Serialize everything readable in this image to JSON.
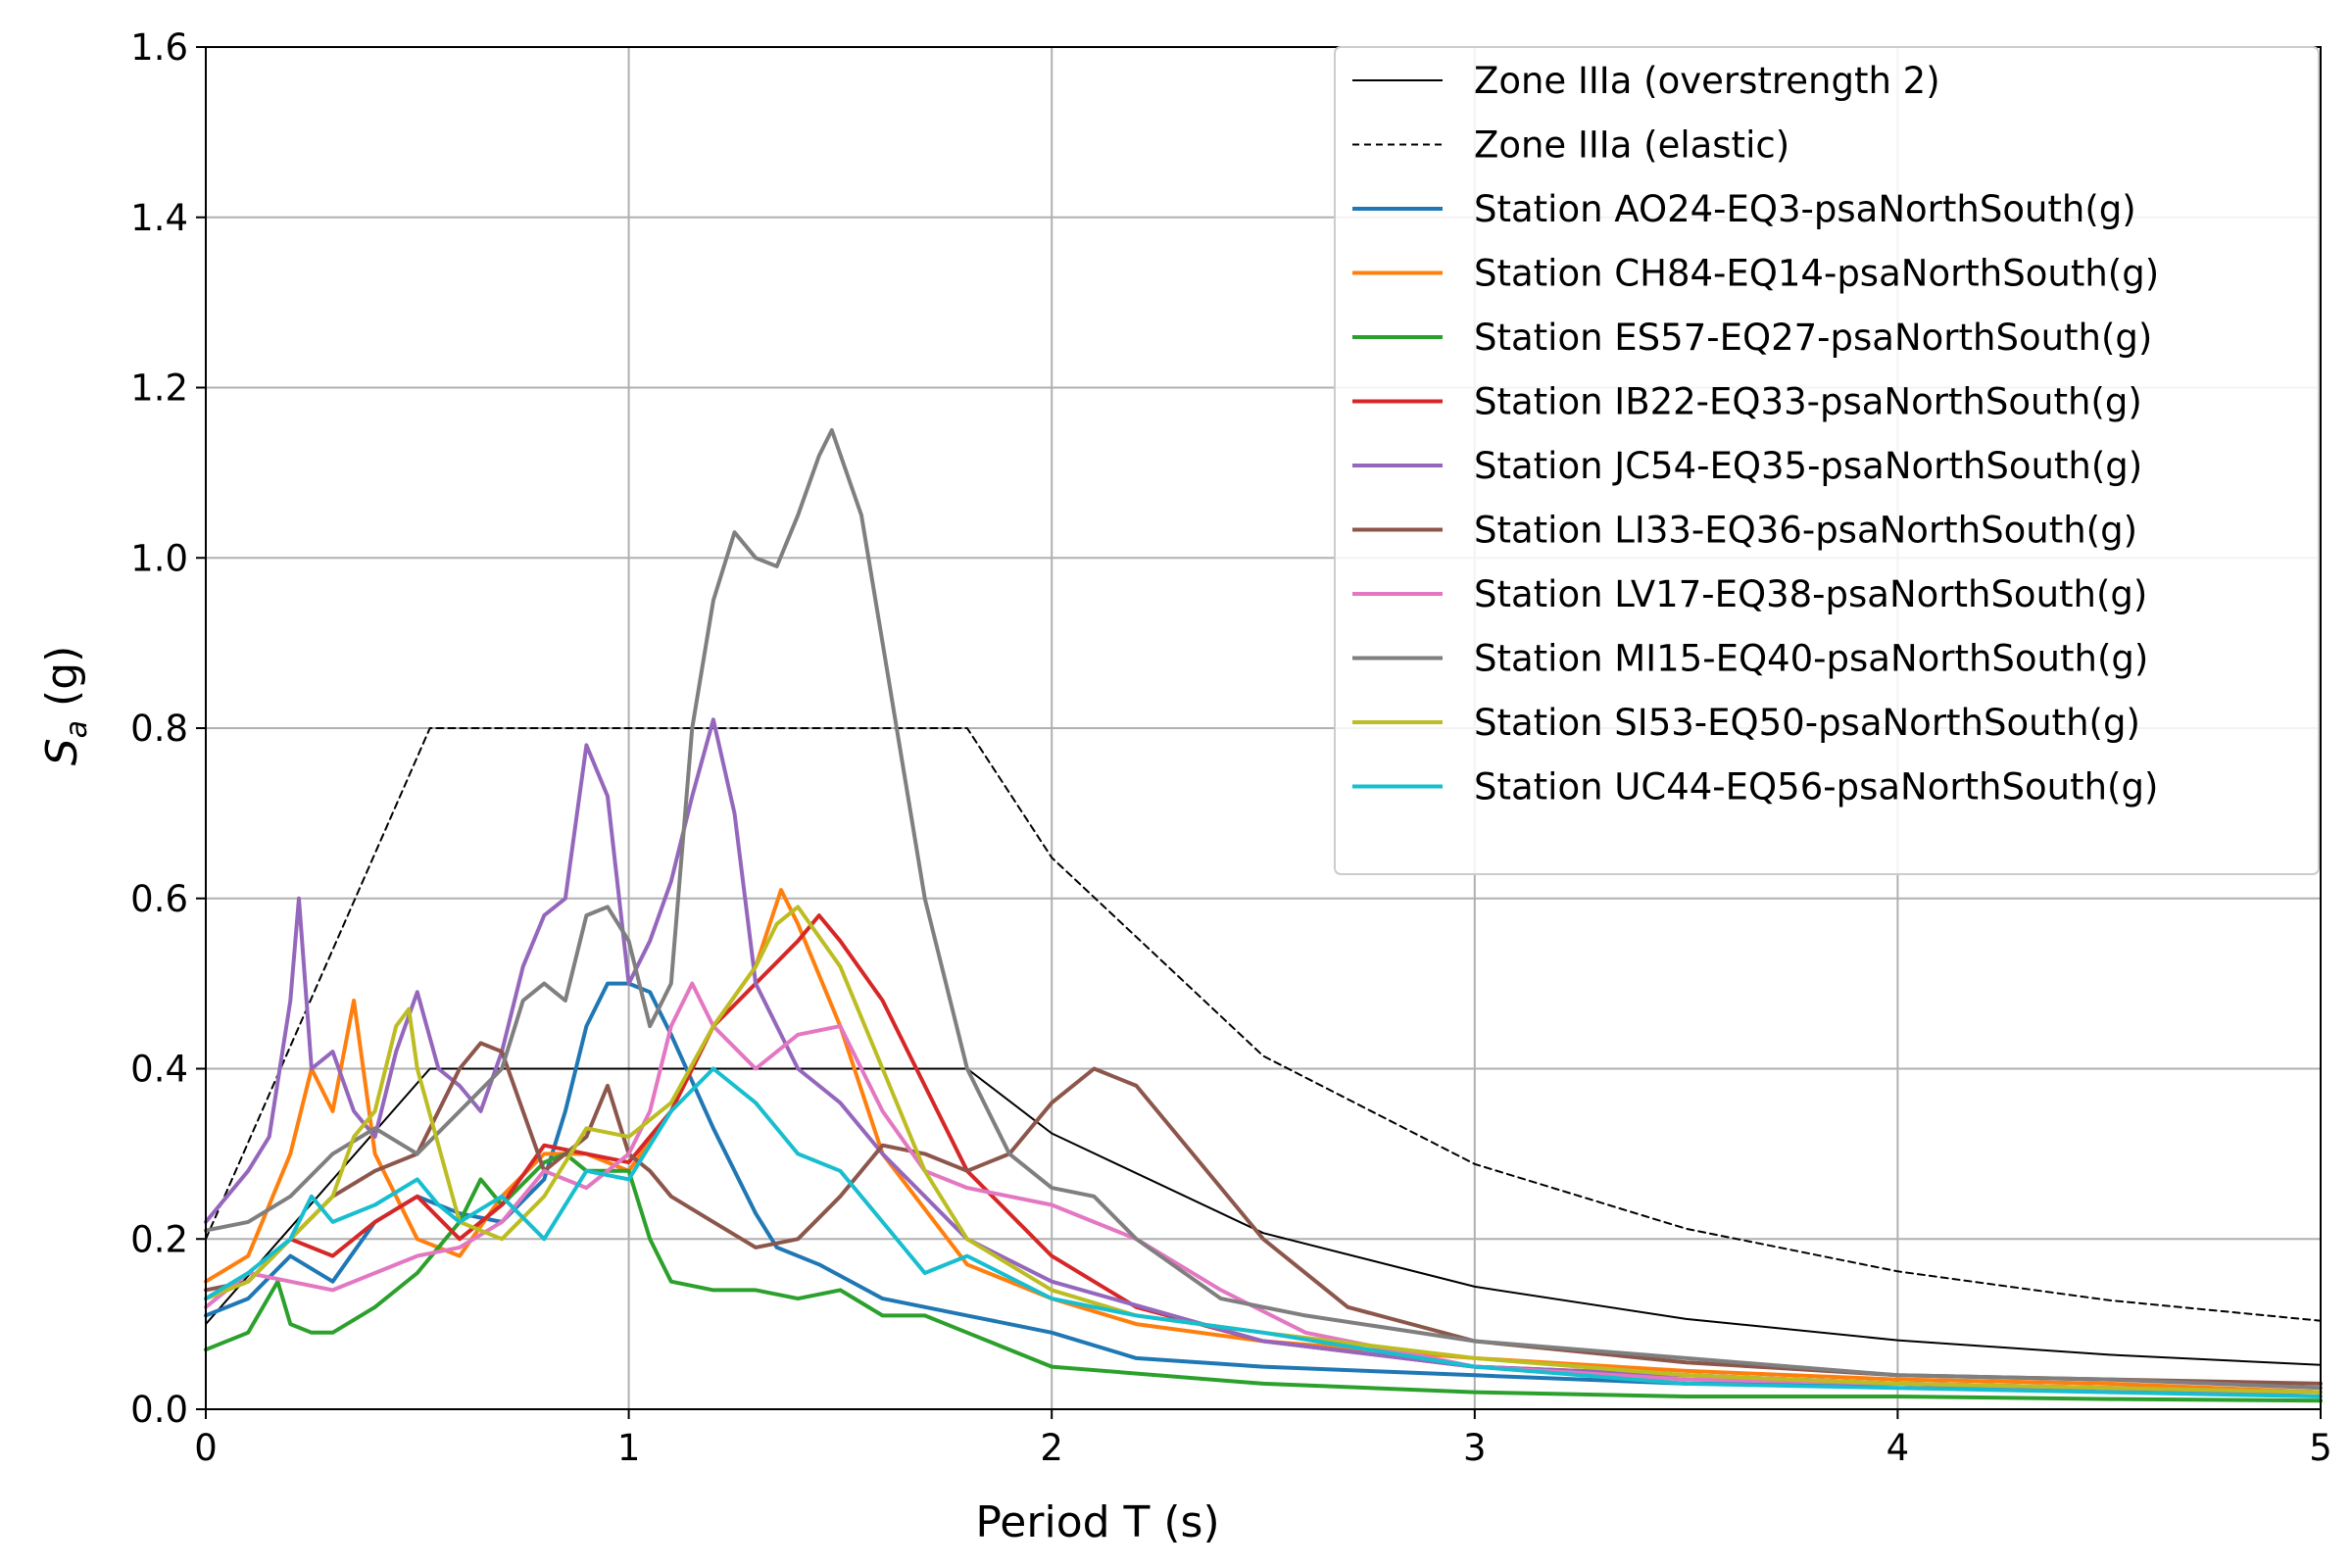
{
  "chart_data": {
    "type": "line",
    "xlabel": "Period T (s)",
    "ylabel_main": "S",
    "ylabel_sub": "a",
    "ylabel_unit": " (g)",
    "xlim": [
      0,
      5
    ],
    "ylim": [
      0,
      1.6
    ],
    "xticks": [
      0,
      1,
      2,
      3,
      4,
      5
    ],
    "xtick_labels": [
      "0",
      "1",
      "2",
      "3",
      "4",
      "5"
    ],
    "yticks": [
      0,
      0.2,
      0.4,
      0.6,
      0.8,
      1.0,
      1.2,
      1.4,
      1.6
    ],
    "ytick_labels": [
      "0.0",
      "0.2",
      "0.4",
      "0.6",
      "0.8",
      "1.0",
      "1.2",
      "1.4",
      "1.6"
    ],
    "grid": true,
    "legend_position": "top-right",
    "series": [
      {
        "name": "Zone IIIa (overstrength 2)",
        "color": "#000000",
        "dash": "solid",
        "width": 2,
        "x": [
          0,
          0.53,
          1.8,
          2.0,
          2.5,
          3.0,
          3.5,
          4.0,
          4.5,
          5.0
        ],
        "y": [
          0.1,
          0.4,
          0.4,
          0.324,
          0.207,
          0.144,
          0.106,
          0.081,
          0.064,
          0.052
        ]
      },
      {
        "name": "Zone IIIa (elastic)",
        "color": "#000000",
        "dash": "dashed",
        "width": 2,
        "x": [
          0,
          0.53,
          1.8,
          2.0,
          2.5,
          3.0,
          3.5,
          4.0,
          4.5,
          5.0
        ],
        "y": [
          0.2,
          0.8,
          0.8,
          0.648,
          0.415,
          0.288,
          0.212,
          0.162,
          0.128,
          0.104
        ]
      },
      {
        "name": "Station AO24-EQ3-psaNorthSouth(g)",
        "color": "#1f77b4",
        "dash": "solid",
        "width": 4,
        "x": [
          0,
          0.1,
          0.2,
          0.3,
          0.4,
          0.5,
          0.6,
          0.7,
          0.8,
          0.85,
          0.9,
          0.95,
          1.0,
          1.05,
          1.1,
          1.2,
          1.3,
          1.35,
          1.45,
          1.6,
          1.8,
          2.0,
          2.2,
          2.5,
          3.0,
          3.5,
          4.0,
          4.5,
          5.0
        ],
        "y": [
          0.11,
          0.13,
          0.18,
          0.15,
          0.22,
          0.25,
          0.23,
          0.22,
          0.27,
          0.35,
          0.45,
          0.5,
          0.5,
          0.49,
          0.44,
          0.33,
          0.23,
          0.19,
          0.17,
          0.13,
          0.11,
          0.09,
          0.06,
          0.05,
          0.04,
          0.03,
          0.03,
          0.025,
          0.02
        ]
      },
      {
        "name": "Station CH84-EQ14-psaNorthSouth(g)",
        "color": "#ff7f0e",
        "dash": "solid",
        "width": 4,
        "x": [
          0,
          0.1,
          0.2,
          0.25,
          0.3,
          0.35,
          0.4,
          0.45,
          0.5,
          0.6,
          0.7,
          0.8,
          0.9,
          1.0,
          1.1,
          1.2,
          1.3,
          1.36,
          1.4,
          1.5,
          1.6,
          1.8,
          2.0,
          2.2,
          2.5,
          3.0,
          3.5,
          4.0,
          4.5,
          5.0
        ],
        "y": [
          0.15,
          0.18,
          0.3,
          0.4,
          0.35,
          0.48,
          0.3,
          0.25,
          0.2,
          0.18,
          0.25,
          0.3,
          0.3,
          0.28,
          0.35,
          0.45,
          0.52,
          0.61,
          0.57,
          0.45,
          0.3,
          0.17,
          0.13,
          0.1,
          0.08,
          0.06,
          0.045,
          0.035,
          0.03,
          0.02
        ]
      },
      {
        "name": "Station ES57-EQ27-psaNorthSouth(g)",
        "color": "#2ca02c",
        "dash": "solid",
        "width": 4,
        "x": [
          0,
          0.1,
          0.17,
          0.2,
          0.25,
          0.3,
          0.4,
          0.5,
          0.6,
          0.65,
          0.7,
          0.8,
          0.85,
          0.9,
          1.0,
          1.05,
          1.1,
          1.2,
          1.3,
          1.4,
          1.5,
          1.6,
          1.7,
          1.8,
          2.0,
          2.5,
          3.0,
          3.5,
          4.0,
          4.5,
          5.0
        ],
        "y": [
          0.07,
          0.09,
          0.15,
          0.1,
          0.09,
          0.09,
          0.12,
          0.16,
          0.22,
          0.27,
          0.24,
          0.29,
          0.3,
          0.28,
          0.28,
          0.2,
          0.15,
          0.14,
          0.14,
          0.13,
          0.14,
          0.11,
          0.11,
          0.09,
          0.05,
          0.03,
          0.02,
          0.015,
          0.015,
          0.012,
          0.01
        ]
      },
      {
        "name": "Station IB22-EQ33-psaNorthSouth(g)",
        "color": "#d62728",
        "dash": "solid",
        "width": 4,
        "x": [
          0,
          0.1,
          0.2,
          0.3,
          0.4,
          0.5,
          0.6,
          0.7,
          0.8,
          0.9,
          1.0,
          1.1,
          1.2,
          1.3,
          1.4,
          1.45,
          1.5,
          1.6,
          1.7,
          1.8,
          2.0,
          2.2,
          2.5,
          3.0,
          3.5,
          4.0,
          4.5,
          5.0
        ],
        "y": [
          0.13,
          0.15,
          0.2,
          0.18,
          0.22,
          0.25,
          0.2,
          0.24,
          0.31,
          0.3,
          0.29,
          0.35,
          0.45,
          0.5,
          0.55,
          0.58,
          0.55,
          0.48,
          0.38,
          0.28,
          0.18,
          0.12,
          0.08,
          0.05,
          0.04,
          0.03,
          0.025,
          0.02
        ]
      },
      {
        "name": "Station JC54-EQ35-psaNorthSouth(g)",
        "color": "#9467bd",
        "dash": "solid",
        "width": 4,
        "x": [
          0,
          0.05,
          0.1,
          0.15,
          0.2,
          0.22,
          0.25,
          0.3,
          0.35,
          0.4,
          0.45,
          0.5,
          0.55,
          0.6,
          0.65,
          0.7,
          0.75,
          0.8,
          0.85,
          0.9,
          0.95,
          1.0,
          1.05,
          1.1,
          1.15,
          1.2,
          1.25,
          1.3,
          1.4,
          1.5,
          1.6,
          1.7,
          1.8,
          2.0,
          2.5,
          3.0,
          3.5,
          4.0,
          4.5,
          5.0
        ],
        "y": [
          0.22,
          0.25,
          0.28,
          0.32,
          0.48,
          0.6,
          0.4,
          0.42,
          0.35,
          0.32,
          0.42,
          0.49,
          0.4,
          0.38,
          0.35,
          0.42,
          0.52,
          0.58,
          0.6,
          0.78,
          0.72,
          0.5,
          0.55,
          0.62,
          0.72,
          0.81,
          0.7,
          0.5,
          0.4,
          0.36,
          0.3,
          0.25,
          0.2,
          0.15,
          0.08,
          0.05,
          0.04,
          0.03,
          0.02,
          0.02
        ]
      },
      {
        "name": "Station LI33-EQ36-psaNorthSouth(g)",
        "color": "#8c564b",
        "dash": "solid",
        "width": 4,
        "x": [
          0,
          0.1,
          0.2,
          0.3,
          0.4,
          0.5,
          0.6,
          0.65,
          0.7,
          0.8,
          0.9,
          0.95,
          1.0,
          1.05,
          1.1,
          1.2,
          1.3,
          1.4,
          1.5,
          1.6,
          1.7,
          1.8,
          1.9,
          2.0,
          2.1,
          2.2,
          2.3,
          2.5,
          2.7,
          3.0,
          3.5,
          4.0,
          4.5,
          5.0
        ],
        "y": [
          0.14,
          0.15,
          0.2,
          0.25,
          0.28,
          0.3,
          0.4,
          0.43,
          0.42,
          0.28,
          0.32,
          0.38,
          0.3,
          0.28,
          0.25,
          0.22,
          0.19,
          0.2,
          0.25,
          0.31,
          0.3,
          0.28,
          0.3,
          0.36,
          0.4,
          0.38,
          0.32,
          0.2,
          0.12,
          0.08,
          0.055,
          0.04,
          0.035,
          0.03
        ]
      },
      {
        "name": "Station LV17-EQ38-psaNorthSouth(g)",
        "color": "#e377c2",
        "dash": "solid",
        "width": 4,
        "x": [
          0,
          0.1,
          0.2,
          0.3,
          0.4,
          0.5,
          0.6,
          0.7,
          0.8,
          0.9,
          1.0,
          1.05,
          1.1,
          1.15,
          1.2,
          1.3,
          1.4,
          1.5,
          1.6,
          1.7,
          1.8,
          2.0,
          2.2,
          2.4,
          2.6,
          3.0,
          3.5,
          4.0,
          4.5,
          5.0
        ],
        "y": [
          0.12,
          0.16,
          0.15,
          0.14,
          0.16,
          0.18,
          0.19,
          0.22,
          0.28,
          0.26,
          0.3,
          0.35,
          0.45,
          0.5,
          0.45,
          0.4,
          0.44,
          0.45,
          0.35,
          0.28,
          0.26,
          0.24,
          0.2,
          0.14,
          0.09,
          0.05,
          0.035,
          0.03,
          0.025,
          0.02
        ]
      },
      {
        "name": "Station MI15-EQ40-psaNorthSouth(g)",
        "color": "#7f7f7f",
        "dash": "solid",
        "width": 4,
        "x": [
          0,
          0.1,
          0.2,
          0.3,
          0.4,
          0.5,
          0.6,
          0.7,
          0.75,
          0.8,
          0.85,
          0.9,
          0.95,
          1.0,
          1.05,
          1.1,
          1.15,
          1.2,
          1.25,
          1.3,
          1.35,
          1.4,
          1.45,
          1.48,
          1.55,
          1.6,
          1.7,
          1.8,
          1.9,
          2.0,
          2.1,
          2.2,
          2.4,
          2.6,
          3.0,
          3.5,
          4.0,
          4.5,
          5.0
        ],
        "y": [
          0.21,
          0.22,
          0.25,
          0.3,
          0.33,
          0.3,
          0.35,
          0.4,
          0.48,
          0.5,
          0.48,
          0.58,
          0.59,
          0.55,
          0.45,
          0.5,
          0.8,
          0.95,
          1.03,
          1.0,
          0.99,
          1.05,
          1.12,
          1.15,
          1.05,
          0.9,
          0.6,
          0.4,
          0.3,
          0.26,
          0.25,
          0.2,
          0.13,
          0.11,
          0.08,
          0.06,
          0.04,
          0.035,
          0.025
        ]
      },
      {
        "name": "Station SI53-EQ50-psaNorthSouth(g)",
        "color": "#bcbd22",
        "dash": "solid",
        "width": 4,
        "x": [
          0,
          0.1,
          0.2,
          0.3,
          0.35,
          0.4,
          0.45,
          0.48,
          0.5,
          0.6,
          0.7,
          0.8,
          0.9,
          1.0,
          1.1,
          1.2,
          1.3,
          1.35,
          1.4,
          1.5,
          1.6,
          1.7,
          1.8,
          2.0,
          2.2,
          2.5,
          3.0,
          3.5,
          4.0,
          4.5,
          5.0
        ],
        "y": [
          0.13,
          0.15,
          0.2,
          0.25,
          0.32,
          0.35,
          0.45,
          0.47,
          0.4,
          0.22,
          0.2,
          0.25,
          0.33,
          0.32,
          0.36,
          0.45,
          0.52,
          0.57,
          0.59,
          0.52,
          0.4,
          0.28,
          0.2,
          0.14,
          0.11,
          0.09,
          0.06,
          0.04,
          0.03,
          0.025,
          0.02
        ]
      },
      {
        "name": "Station UC44-EQ56-psaNorthSouth(g)",
        "color": "#17becf",
        "dash": "solid",
        "width": 4,
        "x": [
          0,
          0.1,
          0.2,
          0.25,
          0.3,
          0.4,
          0.5,
          0.55,
          0.6,
          0.7,
          0.8,
          0.9,
          1.0,
          1.1,
          1.2,
          1.3,
          1.4,
          1.5,
          1.6,
          1.7,
          1.8,
          2.0,
          2.2,
          2.5,
          3.0,
          3.5,
          4.0,
          4.5,
          5.0
        ],
        "y": [
          0.13,
          0.16,
          0.2,
          0.25,
          0.22,
          0.24,
          0.27,
          0.24,
          0.22,
          0.25,
          0.2,
          0.28,
          0.27,
          0.35,
          0.4,
          0.36,
          0.3,
          0.28,
          0.22,
          0.16,
          0.18,
          0.13,
          0.11,
          0.09,
          0.05,
          0.03,
          0.025,
          0.02,
          0.015
        ]
      }
    ]
  }
}
